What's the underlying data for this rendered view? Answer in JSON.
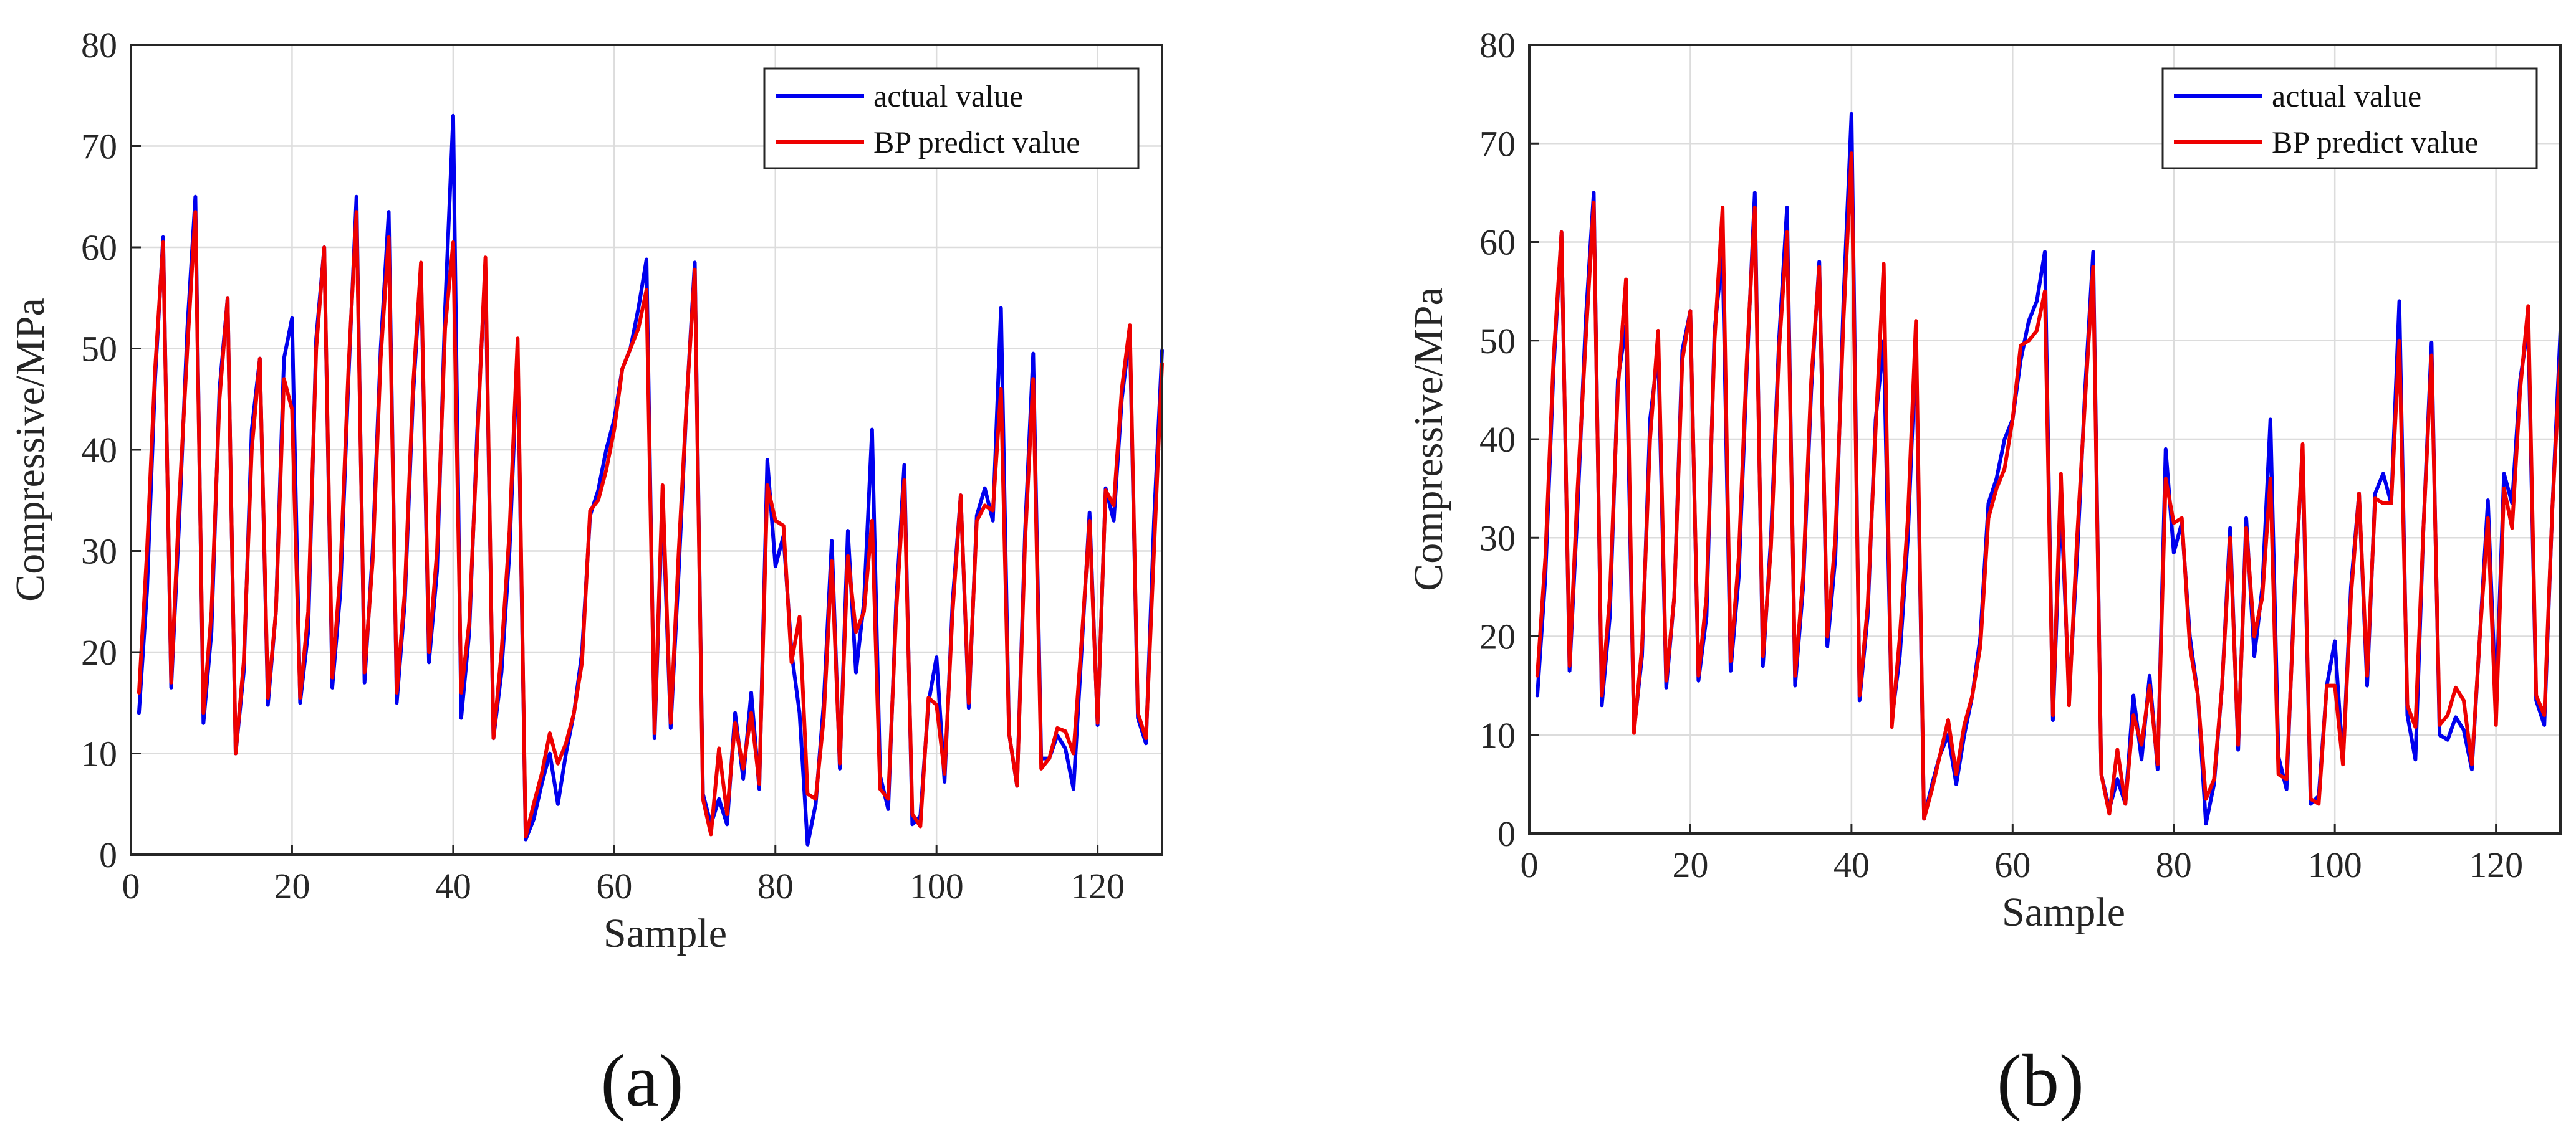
{
  "chart_data": [
    {
      "type": "line",
      "caption": "(a)",
      "xlabel": "Sample",
      "ylabel": "Compressive/MPa",
      "xlim": [
        0,
        128
      ],
      "ylim": [
        0,
        80
      ],
      "xticks": [
        0,
        20,
        40,
        60,
        80,
        100,
        120
      ],
      "yticks": [
        0,
        10,
        20,
        30,
        40,
        50,
        60,
        70,
        80
      ],
      "grid": true,
      "legend_position": "top-right",
      "colors": {
        "actual": "#0000ee",
        "predict": "#ee0000"
      },
      "series": [
        {
          "name": "actual value",
          "x": [
            1,
            2,
            3,
            4,
            5,
            6,
            7,
            8,
            9,
            10,
            11,
            12,
            13,
            14,
            15,
            16,
            17,
            18,
            19,
            20,
            21,
            22,
            23,
            24,
            25,
            26,
            27,
            28,
            29,
            30,
            31,
            32,
            33,
            34,
            35,
            36,
            37,
            38,
            39,
            40,
            41,
            42,
            43,
            44,
            45,
            46,
            47,
            48,
            49,
            50,
            51,
            52,
            53,
            54,
            55,
            56,
            57,
            58,
            59,
            60,
            61,
            62,
            63,
            64,
            65,
            66,
            67,
            68,
            69,
            70,
            71,
            72,
            73,
            74,
            75,
            76,
            77,
            78,
            79,
            80,
            81,
            82,
            83,
            84,
            85,
            86,
            87,
            88,
            89,
            90,
            91,
            92,
            93,
            94,
            95,
            96,
            97,
            98,
            99,
            100,
            101,
            102,
            103,
            104,
            105,
            106,
            107,
            108,
            109,
            110,
            111,
            112,
            113,
            114,
            115,
            116,
            117,
            118,
            119,
            120,
            121,
            122,
            123,
            124,
            125,
            126,
            127,
            128
          ],
          "y": [
            14,
            26,
            47,
            61,
            16.5,
            33,
            52,
            65,
            13,
            22,
            46,
            55,
            10,
            18,
            42,
            49,
            14.8,
            24,
            49,
            53,
            15,
            22,
            51,
            60,
            16.5,
            26,
            47,
            65,
            17,
            30,
            50,
            63.5,
            15,
            25,
            45,
            58,
            19,
            28,
            54,
            73,
            13.5,
            22,
            42,
            58,
            11.5,
            18,
            30,
            50,
            1.5,
            3.5,
            7,
            10,
            5,
            10,
            14,
            20,
            33.5,
            36,
            40,
            43,
            48,
            50,
            54,
            58.8,
            11.5,
            35,
            12.5,
            28,
            45,
            58.5,
            6,
            3,
            5.5,
            3,
            14,
            7.5,
            16,
            6.5,
            39,
            28.5,
            31.5,
            20,
            14,
            1,
            5,
            15,
            31,
            8.5,
            32,
            18,
            25,
            42,
            7.8,
            4.5,
            25,
            38.5,
            3,
            3.8,
            15,
            19.5,
            7.2,
            25,
            35.5,
            14.5,
            33.5,
            36.2,
            33,
            54,
            12,
            6.8,
            32,
            49.5,
            9.5,
            9.5,
            11.8,
            10.5,
            6.5,
            20,
            33.8,
            12.8,
            36.2,
            33,
            45,
            51.5,
            13.5,
            11,
            33,
            49.8
          ]
        },
        {
          "name": "BP predict value",
          "x": [
            1,
            2,
            3,
            4,
            5,
            6,
            7,
            8,
            9,
            10,
            11,
            12,
            13,
            14,
            15,
            16,
            17,
            18,
            19,
            20,
            21,
            22,
            23,
            24,
            25,
            26,
            27,
            28,
            29,
            30,
            31,
            32,
            33,
            34,
            35,
            36,
            37,
            38,
            39,
            40,
            41,
            42,
            43,
            44,
            45,
            46,
            47,
            48,
            49,
            50,
            51,
            52,
            53,
            54,
            55,
            56,
            57,
            58,
            59,
            60,
            61,
            62,
            63,
            64,
            65,
            66,
            67,
            68,
            69,
            70,
            71,
            72,
            73,
            74,
            75,
            76,
            77,
            78,
            79,
            80,
            81,
            82,
            83,
            84,
            85,
            86,
            87,
            88,
            89,
            90,
            91,
            92,
            93,
            94,
            95,
            96,
            97,
            98,
            99,
            100,
            101,
            102,
            103,
            104,
            105,
            106,
            107,
            108,
            109,
            110,
            111,
            112,
            113,
            114,
            115,
            116,
            117,
            118,
            119,
            120,
            121,
            122,
            123,
            124,
            125,
            126,
            127,
            128
          ],
          "y": [
            16,
            30,
            48,
            60.5,
            17,
            35,
            50,
            63.5,
            14,
            24,
            45,
            55,
            10,
            19,
            40,
            49,
            15.5,
            24,
            47,
            44,
            15.5,
            24,
            50,
            60,
            17.5,
            28,
            48,
            63.5,
            18,
            29,
            49,
            61,
            16,
            26,
            46,
            58.5,
            20,
            30,
            52,
            60.5,
            16,
            23,
            41,
            59,
            11.5,
            20,
            32,
            51,
            1.8,
            5,
            8,
            12,
            9,
            11,
            14,
            19,
            34,
            35,
            38,
            42,
            48,
            50,
            52,
            55.8,
            12,
            36.5,
            13,
            30,
            45,
            57.8,
            5.5,
            2,
            10.5,
            4,
            13,
            8.5,
            14,
            7,
            36.5,
            33,
            32.5,
            19,
            23.5,
            6,
            5.5,
            13.5,
            29,
            9,
            29.5,
            22,
            24,
            33,
            6.5,
            5.5,
            24,
            37,
            4,
            2.8,
            15.5,
            14.8,
            8,
            24,
            35.5,
            15,
            33,
            34.5,
            34,
            46,
            12,
            6.8,
            31,
            47,
            8.5,
            9.5,
            12.5,
            12.2,
            10,
            21,
            33,
            13,
            36,
            34.5,
            46,
            52.3,
            14,
            11.5,
            30,
            48.5
          ]
        }
      ]
    },
    {
      "type": "line",
      "caption": "(b)",
      "xlabel": "Sample",
      "ylabel": "Compressive/MPa",
      "xlim": [
        0,
        128
      ],
      "ylim": [
        0,
        80
      ],
      "xticks": [
        0,
        20,
        40,
        60,
        80,
        100,
        120
      ],
      "yticks": [
        0,
        10,
        20,
        30,
        40,
        50,
        60,
        70,
        80
      ],
      "grid": true,
      "legend_position": "top-right",
      "colors": {
        "actual": "#0000ee",
        "predict": "#ee0000"
      },
      "series": [
        {
          "name": "actual value",
          "x": [
            1,
            2,
            3,
            4,
            5,
            6,
            7,
            8,
            9,
            10,
            11,
            12,
            13,
            14,
            15,
            16,
            17,
            18,
            19,
            20,
            21,
            22,
            23,
            24,
            25,
            26,
            27,
            28,
            29,
            30,
            31,
            32,
            33,
            34,
            35,
            36,
            37,
            38,
            39,
            40,
            41,
            42,
            43,
            44,
            45,
            46,
            47,
            48,
            49,
            50,
            51,
            52,
            53,
            54,
            55,
            56,
            57,
            58,
            59,
            60,
            61,
            62,
            63,
            64,
            65,
            66,
            67,
            68,
            69,
            70,
            71,
            72,
            73,
            74,
            75,
            76,
            77,
            78,
            79,
            80,
            81,
            82,
            83,
            84,
            85,
            86,
            87,
            88,
            89,
            90,
            91,
            92,
            93,
            94,
            95,
            96,
            97,
            98,
            99,
            100,
            101,
            102,
            103,
            104,
            105,
            106,
            107,
            108,
            109,
            110,
            111,
            112,
            113,
            114,
            115,
            116,
            117,
            118,
            119,
            120,
            121,
            122,
            123,
            124,
            125,
            126,
            127,
            128
          ],
          "y": [
            14,
            26,
            47,
            61,
            16.5,
            33,
            52,
            65,
            13,
            22,
            46,
            51.5,
            10.5,
            18,
            42,
            49,
            14.8,
            24,
            49,
            53,
            15.5,
            22,
            51,
            59,
            16.5,
            26,
            47,
            65,
            17,
            30,
            50,
            63.5,
            15,
            25,
            45,
            58,
            19,
            28,
            54,
            73,
            13.5,
            22,
            42,
            50,
            11.5,
            18,
            30,
            50,
            1.5,
            5,
            8,
            10,
            5,
            10,
            14,
            20,
            33.5,
            36,
            40,
            42,
            48,
            52,
            54,
            59,
            11.5,
            34,
            14,
            28,
            45,
            59,
            6,
            2.5,
            5.5,
            3,
            14,
            7.5,
            16,
            6.5,
            39,
            28.5,
            31.5,
            20,
            14,
            1,
            5,
            15,
            31,
            8.5,
            32,
            18,
            25,
            42,
            7.8,
            4.5,
            25,
            38.5,
            3,
            3.8,
            15,
            19.5,
            7.2,
            25,
            34.5,
            15,
            34.5,
            36.5,
            33.5,
            54,
            12,
            7.5,
            31,
            49.8,
            10,
            9.5,
            11.8,
            10.5,
            6.5,
            20,
            33.8,
            12.8,
            36.5,
            33.5,
            46,
            51.5,
            13.5,
            11,
            33,
            51
          ]
        },
        {
          "name": "BP predict value",
          "x": [
            1,
            2,
            3,
            4,
            5,
            6,
            7,
            8,
            9,
            10,
            11,
            12,
            13,
            14,
            15,
            16,
            17,
            18,
            19,
            20,
            21,
            22,
            23,
            24,
            25,
            26,
            27,
            28,
            29,
            30,
            31,
            32,
            33,
            34,
            35,
            36,
            37,
            38,
            39,
            40,
            41,
            42,
            43,
            44,
            45,
            46,
            47,
            48,
            49,
            50,
            51,
            52,
            53,
            54,
            55,
            56,
            57,
            58,
            59,
            60,
            61,
            62,
            63,
            64,
            65,
            66,
            67,
            68,
            69,
            70,
            71,
            72,
            73,
            74,
            75,
            76,
            77,
            78,
            79,
            80,
            81,
            82,
            83,
            84,
            85,
            86,
            87,
            88,
            89,
            90,
            91,
            92,
            93,
            94,
            95,
            96,
            97,
            98,
            99,
            100,
            101,
            102,
            103,
            104,
            105,
            106,
            107,
            108,
            109,
            110,
            111,
            112,
            113,
            114,
            115,
            116,
            117,
            118,
            119,
            120,
            121,
            122,
            123,
            124,
            125,
            126,
            127,
            128
          ],
          "y": [
            16,
            28,
            48,
            61,
            17,
            35,
            50,
            64,
            14,
            24,
            45,
            56.2,
            10.2,
            19,
            40,
            51,
            15.5,
            24,
            48,
            53,
            16,
            24,
            50,
            63.5,
            17.5,
            28,
            48,
            63.5,
            18,
            29,
            49,
            61,
            16,
            26,
            46,
            57.5,
            20,
            30,
            52,
            69,
            14,
            23,
            41,
            57.8,
            10.8,
            20,
            32,
            52,
            1.5,
            4.5,
            8,
            11.5,
            6,
            11,
            14,
            19,
            32,
            35,
            37,
            42,
            49.5,
            50,
            51,
            55,
            12,
            36.5,
            13,
            30,
            44,
            57.5,
            6,
            2,
            8.5,
            3,
            12,
            9,
            15,
            7,
            36,
            31.5,
            32,
            19,
            14,
            3.5,
            5.5,
            15,
            30,
            9,
            31,
            20,
            24,
            36,
            6,
            5.5,
            24,
            39.5,
            3.5,
            3,
            15,
            15,
            7,
            24,
            34.5,
            16,
            34,
            33.5,
            33.5,
            50,
            13,
            10.8,
            31,
            48.5,
            11,
            12,
            14.8,
            13.5,
            7,
            20,
            32,
            11,
            35,
            31,
            45,
            53.5,
            14,
            12,
            33,
            48.5
          ]
        }
      ]
    }
  ]
}
